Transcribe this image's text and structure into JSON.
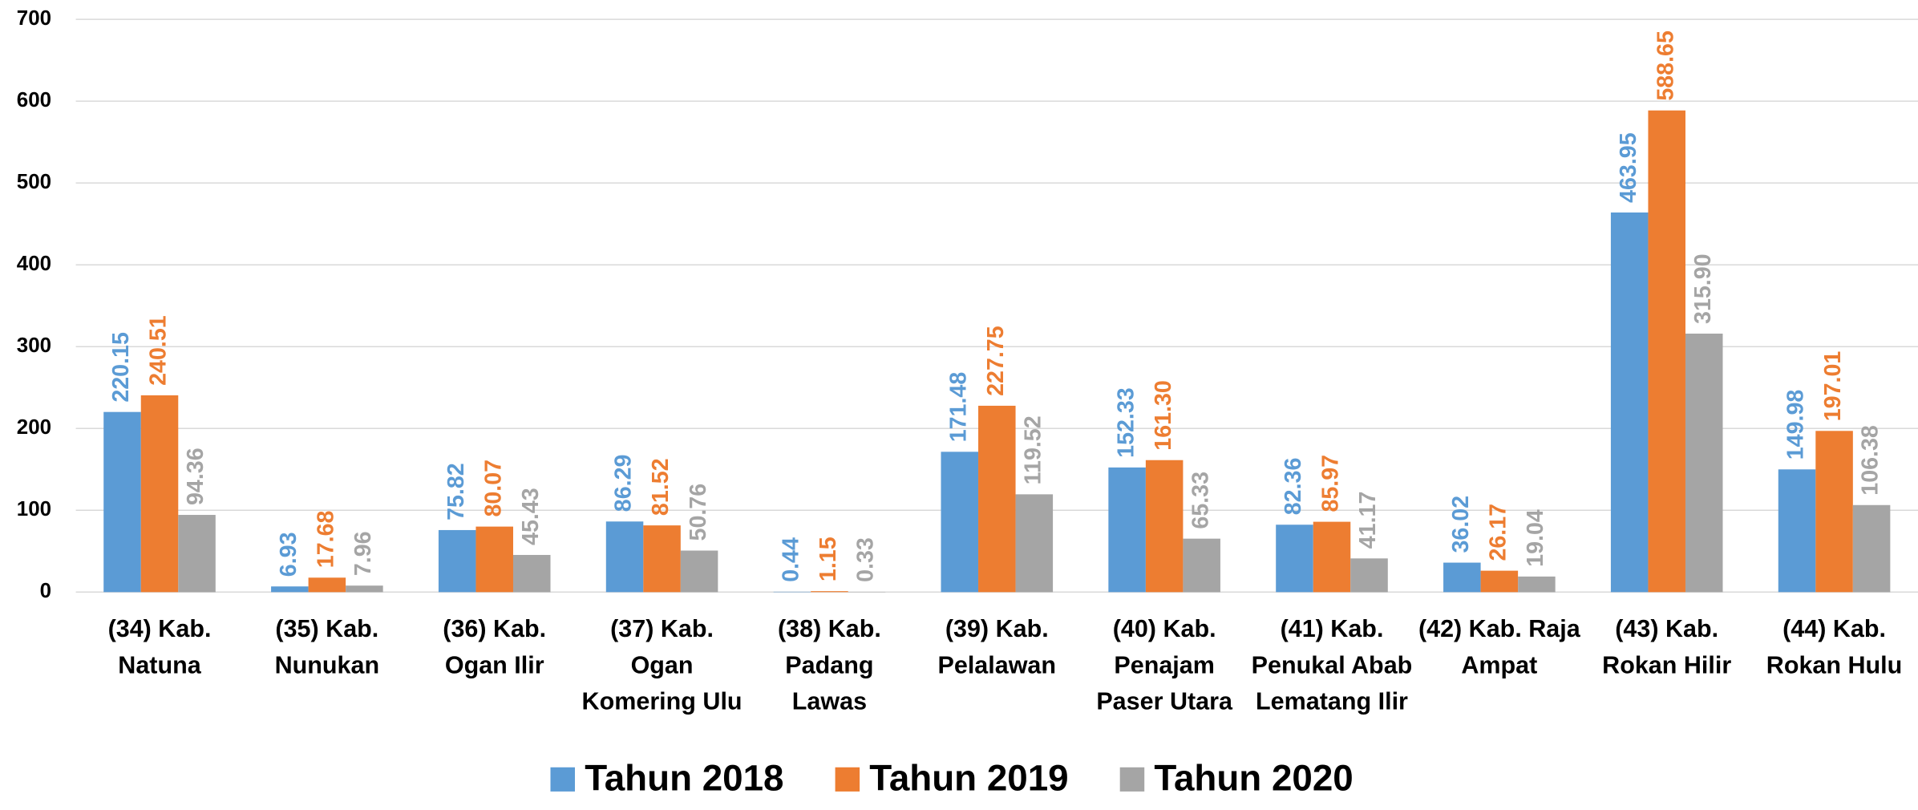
{
  "chart_data": {
    "type": "bar",
    "categories": [
      "(34) Kab. Natuna",
      "(35) Kab. Nunukan",
      "(36) Kab. Ogan Ilir",
      "(37) Kab. Ogan Komering Ulu",
      "(38) Kab. Padang Lawas",
      "(39) Kab. Pelalawan",
      "(40) Kab. Penajam Paser Utara",
      "(41) Kab. Penukal Abab Lematang Ilir",
      "(42) Kab. Raja Ampat",
      "(43) Kab. Rokan Hilir",
      "(44) Kab. Rokan Hulu"
    ],
    "series": [
      {
        "name": "Tahun 2018",
        "color": "#5b9bd5",
        "values": [
          220.15,
          6.93,
          75.82,
          86.29,
          0.44,
          171.48,
          152.33,
          82.36,
          36.02,
          463.95,
          149.98
        ],
        "value_labels": [
          "220.15",
          "6.93",
          "75.82",
          "86.29",
          "0.44",
          "171.48",
          "152.33",
          "82.36",
          "36.02",
          "463.95",
          "149.98"
        ]
      },
      {
        "name": "Tahun 2019",
        "color": "#ed7d31",
        "values": [
          240.51,
          17.68,
          80.07,
          81.52,
          1.15,
          227.75,
          161.3,
          85.97,
          26.17,
          588.65,
          197.01
        ],
        "value_labels": [
          "240.51",
          "17.68",
          "80.07",
          "81.52",
          "1.15",
          "227.75",
          "161.30",
          "85.97",
          "26.17",
          "588.65",
          "197.01"
        ]
      },
      {
        "name": "Tahun 2020",
        "color": "#a5a5a5",
        "values": [
          94.36,
          7.96,
          45.43,
          50.76,
          0.33,
          119.52,
          65.33,
          41.17,
          19.04,
          315.9,
          106.38
        ],
        "value_labels": [
          "94.36",
          "7.96",
          "45.43",
          "50.76",
          "0.33",
          "119.52",
          "65.33",
          "41.17",
          "19.04",
          "315.90",
          "106.38"
        ]
      }
    ],
    "ylim": [
      0,
      700
    ],
    "yticks": [
      0,
      100,
      200,
      300,
      400,
      500,
      600,
      700
    ],
    "grid": true,
    "legend": "bottom"
  }
}
